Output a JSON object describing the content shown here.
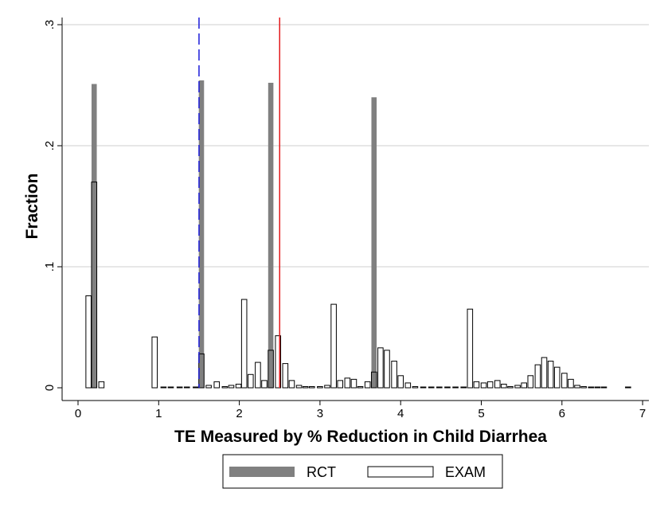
{
  "chart_data": {
    "type": "bar",
    "title": "",
    "xlabel": "TE Measured by % Reduction in Child Diarrhea",
    "ylabel": "Fraction",
    "xlim": [
      -0.2,
      7.1
    ],
    "ylim": [
      0,
      0.3
    ],
    "x_ticks": [
      0,
      1,
      2,
      3,
      4,
      5,
      6,
      7
    ],
    "x_tick_labels": [
      "0",
      "1",
      "2",
      "3",
      "4",
      "5",
      "6",
      "7"
    ],
    "y_ticks": [
      0,
      0.1,
      0.2,
      0.3
    ],
    "y_tick_labels": [
      "0",
      ".1",
      ".2",
      ".3"
    ],
    "grid": "horizontal",
    "bar_width": 0.065,
    "legend": {
      "placement": "bottom",
      "entries": [
        "RCT",
        "EXAM"
      ]
    },
    "colors": {
      "rct": "#808080",
      "exam_fill": "#ffffff",
      "exam_stroke": "#000000",
      "blue_line": "#1a1ad9",
      "red_line": "#e31a1c",
      "grid": "#cfcfcf"
    },
    "reference_lines": [
      {
        "x": 1.5,
        "style": "dashed",
        "color": "#1a1ad9"
      },
      {
        "x": 2.5,
        "style": "solid",
        "color": "#e31a1c"
      }
    ],
    "series": [
      {
        "name": "RCT",
        "style": "filled",
        "x": [
          0.2,
          1.53,
          2.39,
          3.67
        ],
        "values": [
          0.251,
          0.254,
          0.252,
          0.24
        ]
      },
      {
        "name": "EXAM",
        "style": "outline",
        "x": [
          0.13,
          0.2,
          0.29,
          0.95,
          1.06,
          1.15,
          1.26,
          1.35,
          1.46,
          1.53,
          1.62,
          1.72,
          1.82,
          1.9,
          1.99,
          2.06,
          2.14,
          2.23,
          2.31,
          2.39,
          2.48,
          2.57,
          2.65,
          2.74,
          2.82,
          2.9,
          3.0,
          3.09,
          3.17,
          3.25,
          3.34,
          3.42,
          3.5,
          3.59,
          3.67,
          3.75,
          3.83,
          3.92,
          4.0,
          4.09,
          4.18,
          4.28,
          4.38,
          4.48,
          4.58,
          4.68,
          4.78,
          4.86,
          4.94,
          5.03,
          5.11,
          5.2,
          5.28,
          5.36,
          5.45,
          5.53,
          5.61,
          5.7,
          5.78,
          5.86,
          5.94,
          6.03,
          6.11,
          6.19,
          6.27,
          6.36,
          6.44,
          6.52,
          6.82
        ],
        "values": [
          0.076,
          0.17,
          0.005,
          0.042,
          0.0005,
          0.0005,
          0.0005,
          0.0005,
          0.0005,
          0.028,
          0.002,
          0.005,
          0.001,
          0.002,
          0.003,
          0.073,
          0.011,
          0.021,
          0.006,
          0.031,
          0.043,
          0.02,
          0.006,
          0.002,
          0.001,
          0.001,
          0.001,
          0.002,
          0.069,
          0.006,
          0.008,
          0.007,
          0.001,
          0.005,
          0.013,
          0.033,
          0.031,
          0.022,
          0.01,
          0.004,
          0.001,
          0.0005,
          0.0005,
          0.0005,
          0.0005,
          0.0005,
          0.0005,
          0.065,
          0.005,
          0.004,
          0.005,
          0.006,
          0.003,
          0.001,
          0.002,
          0.004,
          0.01,
          0.019,
          0.025,
          0.022,
          0.017,
          0.012,
          0.007,
          0.002,
          0.001,
          0.0005,
          0.0005,
          0.0005,
          0.0005
        ]
      }
    ]
  }
}
